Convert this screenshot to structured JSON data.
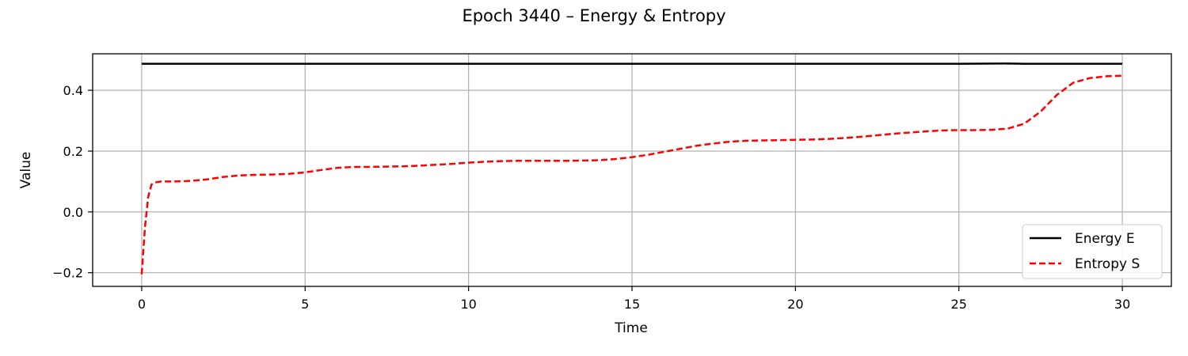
{
  "chart_data": {
    "type": "line",
    "title": "Epoch 3440 – Energy & Entropy",
    "xlabel": "Time",
    "ylabel": "Value",
    "xlim": [
      -1.5,
      31.5
    ],
    "ylim": [
      -0.245,
      0.52
    ],
    "xticks": [
      0,
      5,
      10,
      15,
      20,
      25,
      30
    ],
    "xtick_labels": [
      "0",
      "5",
      "10",
      "15",
      "20",
      "25",
      "30"
    ],
    "yticks": [
      -0.2,
      0.0,
      0.2,
      0.4
    ],
    "ytick_labels": [
      "−0.2",
      "0.0",
      "0.2",
      "0.4"
    ],
    "grid": true,
    "legend_position": "lower-right",
    "series": [
      {
        "name": "Energy E",
        "color": "#000000",
        "style": "solid",
        "x": [
          0,
          5,
          10,
          15,
          20,
          25,
          26.5,
          27,
          30
        ],
        "y": [
          0.487,
          0.487,
          0.487,
          0.487,
          0.487,
          0.487,
          0.488,
          0.487,
          0.487
        ]
      },
      {
        "name": "Entropy S",
        "color": "#ff0000",
        "style": "dashed",
        "x": [
          0,
          0.1,
          0.2,
          0.3,
          0.4,
          0.6,
          1,
          1.5,
          2,
          2.5,
          3,
          3.5,
          4,
          4.5,
          5,
          5.5,
          6,
          6.5,
          7,
          7.5,
          8,
          8.5,
          9,
          9.5,
          10,
          10.5,
          11,
          11.5,
          12,
          12.5,
          13,
          13.5,
          14,
          14.5,
          15,
          15.5,
          16,
          16.5,
          17,
          17.5,
          18,
          18.5,
          19,
          19.5,
          20,
          20.5,
          21,
          21.5,
          22,
          22.5,
          23,
          23.5,
          24,
          24.5,
          25,
          25.5,
          26,
          26.5,
          27,
          27.5,
          28,
          28.5,
          29,
          29.5,
          30
        ],
        "y": [
          -0.205,
          -0.05,
          0.05,
          0.09,
          0.097,
          0.1,
          0.1,
          0.102,
          0.107,
          0.115,
          0.12,
          0.122,
          0.123,
          0.125,
          0.13,
          0.138,
          0.145,
          0.148,
          0.148,
          0.149,
          0.15,
          0.152,
          0.155,
          0.158,
          0.162,
          0.165,
          0.167,
          0.168,
          0.168,
          0.168,
          0.168,
          0.169,
          0.17,
          0.174,
          0.18,
          0.188,
          0.198,
          0.208,
          0.218,
          0.225,
          0.231,
          0.234,
          0.235,
          0.236,
          0.237,
          0.238,
          0.24,
          0.243,
          0.247,
          0.252,
          0.257,
          0.261,
          0.265,
          0.268,
          0.269,
          0.269,
          0.27,
          0.274,
          0.29,
          0.33,
          0.385,
          0.425,
          0.44,
          0.446,
          0.448
        ]
      }
    ]
  }
}
